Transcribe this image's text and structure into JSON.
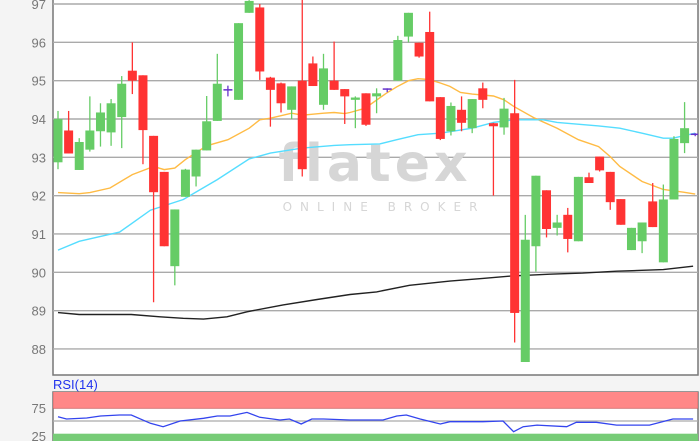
{
  "watermark": {
    "logo": "flatex",
    "tagline": "ONLINE BROKER"
  },
  "colors": {
    "up": "#66cc66",
    "down": "#ff3333",
    "doji": "#6633cc",
    "ma_short": "#ffbb44",
    "ma_mid": "#55ddff",
    "ma_long": "#222222",
    "rsi_line": "#3344ee",
    "overbought_band": "#ff8888",
    "oversold_band": "#77cc77"
  },
  "chart_data": [
    {
      "type": "candlestick",
      "ylim": [
        87.3,
        97.1
      ],
      "yticks": [
        "88",
        "89",
        "90",
        "91",
        "92",
        "93",
        "94",
        "95",
        "96",
        "97"
      ],
      "grid": true,
      "candles_ohlc": [
        [
          92.87,
          94.21,
          92.69,
          94.0
        ],
        [
          93.7,
          94.21,
          93.1,
          93.1
        ],
        [
          92.67,
          93.5,
          92.67,
          93.4
        ],
        [
          93.2,
          94.59,
          93.15,
          93.7
        ],
        [
          93.68,
          94.41,
          93.28,
          94.17
        ],
        [
          93.65,
          94.52,
          93.3,
          94.41
        ],
        [
          94.05,
          95.12,
          93.24,
          94.92
        ],
        [
          95.26,
          96.0,
          94.65,
          95.0
        ],
        [
          95.14,
          95.14,
          92.82,
          93.71
        ],
        [
          93.56,
          93.56,
          89.22,
          92.09
        ],
        [
          92.62,
          92.62,
          90.68,
          90.68
        ],
        [
          90.16,
          91.64,
          89.66,
          91.64
        ],
        [
          91.97,
          92.7,
          91.97,
          92.68
        ],
        [
          92.5,
          93.2,
          92.24,
          93.2
        ],
        [
          93.18,
          94.6,
          93.18,
          93.94
        ],
        [
          93.95,
          95.7,
          93.95,
          94.92
        ],
        [
          94.74,
          94.87,
          94.59,
          94.78
        ],
        [
          94.5,
          96.5,
          94.5,
          96.5
        ],
        [
          96.77,
          97.1,
          96.77,
          97.08
        ],
        [
          96.91,
          97.0,
          95.02,
          95.24
        ],
        [
          95.08,
          95.1,
          93.8,
          94.76
        ],
        [
          94.93,
          94.95,
          94.17,
          94.41
        ],
        [
          94.24,
          94.85,
          94.0,
          94.85
        ],
        [
          95.0,
          97.2,
          92.5,
          92.69
        ],
        [
          95.45,
          95.63,
          94.86,
          94.86
        ],
        [
          94.37,
          95.7,
          94.24,
          95.32
        ],
        [
          95.0,
          96.02,
          94.76,
          94.76
        ],
        [
          94.78,
          94.78,
          93.87,
          94.59
        ],
        [
          94.5,
          94.59,
          93.76,
          94.56
        ],
        [
          94.67,
          94.67,
          93.82,
          93.85
        ],
        [
          94.59,
          94.8,
          94.15,
          94.67
        ],
        [
          94.78,
          94.8,
          94.7,
          94.8
        ],
        [
          95.0,
          96.17,
          95.0,
          96.06
        ],
        [
          96.15,
          96.77,
          96.0,
          96.77
        ],
        [
          95.99,
          95.99,
          95.6,
          95.63
        ],
        [
          96.27,
          96.8,
          94.46,
          94.46
        ],
        [
          94.57,
          94.57,
          93.45,
          93.48
        ],
        [
          93.68,
          94.43,
          93.57,
          94.34
        ],
        [
          94.24,
          94.59,
          93.68,
          93.9
        ],
        [
          93.76,
          94.52,
          93.63,
          94.52
        ],
        [
          94.8,
          94.95,
          94.28,
          94.5
        ],
        [
          93.89,
          93.9,
          92.0,
          93.81
        ],
        [
          93.78,
          94.55,
          93.59,
          94.27
        ],
        [
          94.15,
          95.02,
          88.17,
          88.94
        ],
        [
          87.66,
          91.5,
          87.66,
          90.85
        ],
        [
          90.68,
          92.52,
          90.02,
          92.52
        ],
        [
          92.14,
          92.14,
          90.91,
          91.13
        ],
        [
          91.16,
          91.5,
          90.96,
          91.3
        ],
        [
          91.5,
          91.68,
          90.52,
          90.87
        ],
        [
          90.81,
          92.49,
          90.81,
          92.49
        ],
        [
          92.48,
          92.6,
          92.33,
          92.33
        ],
        [
          93.02,
          93.02,
          92.63,
          92.66
        ],
        [
          92.62,
          92.62,
          91.63,
          91.83
        ],
        [
          91.91,
          91.91,
          91.24,
          91.24
        ],
        [
          90.58,
          91.16,
          90.58,
          91.16
        ],
        [
          90.81,
          91.3,
          90.5,
          91.3
        ],
        [
          91.85,
          92.33,
          91.18,
          91.18
        ],
        [
          90.26,
          92.29,
          90.26,
          91.9
        ],
        [
          91.9,
          93.55,
          91.9,
          93.48
        ],
        [
          93.37,
          94.44,
          93.11,
          93.76
        ],
        [
          93.6,
          93.63,
          93.55,
          93.62
        ]
      ],
      "moving_averages": [
        {
          "color_key": "ma_short",
          "points": [
            [
              0,
              92.08
            ],
            [
              2,
              92.05
            ],
            [
              3,
              92.08
            ],
            [
              4.9,
              92.2
            ],
            [
              7,
              92.55
            ],
            [
              9,
              92.76
            ],
            [
              10,
              92.68
            ],
            [
              11,
              92.72
            ],
            [
              12,
              92.94
            ],
            [
              14,
              93.3
            ],
            [
              16,
              93.46
            ],
            [
              18,
              93.76
            ],
            [
              19,
              93.98
            ],
            [
              20,
              94.02
            ],
            [
              22,
              94.15
            ],
            [
              23,
              94.1
            ],
            [
              25,
              94.15
            ],
            [
              26,
              94.17
            ],
            [
              27,
              94.14
            ],
            [
              27.5,
              94.17
            ],
            [
              28.9,
              94.28
            ],
            [
              30.9,
              94.67
            ],
            [
              31.9,
              94.84
            ],
            [
              33,
              95.0
            ],
            [
              33.9,
              95.05
            ],
            [
              34.9,
              95.03
            ],
            [
              36,
              94.94
            ],
            [
              36.9,
              94.85
            ],
            [
              37.9,
              94.69
            ],
            [
              39,
              94.65
            ],
            [
              41,
              94.6
            ],
            [
              42,
              94.5
            ],
            [
              42.9,
              94.33
            ],
            [
              44.9,
              94.02
            ],
            [
              47,
              93.76
            ],
            [
              49,
              93.46
            ],
            [
              50.9,
              93.28
            ],
            [
              52,
              93.02
            ],
            [
              52.9,
              92.76
            ],
            [
              55,
              92.37
            ],
            [
              57,
              92.16
            ],
            [
              58.9,
              92.09
            ],
            [
              60,
              92.04
            ]
          ]
        },
        {
          "color_key": "ma_mid",
          "points": [
            [
              0,
              90.58
            ],
            [
              2,
              90.81
            ],
            [
              5.8,
              91.05
            ],
            [
              8.7,
              91.62
            ],
            [
              11.8,
              91.9
            ],
            [
              15,
              92.42
            ],
            [
              18,
              92.96
            ],
            [
              20,
              93.11
            ],
            [
              23,
              93.24
            ],
            [
              26,
              93.31
            ],
            [
              27.5,
              93.33
            ],
            [
              30.3,
              93.35
            ],
            [
              31.9,
              93.46
            ],
            [
              33.9,
              93.59
            ],
            [
              36,
              93.63
            ],
            [
              39,
              93.76
            ],
            [
              41,
              93.91
            ],
            [
              42.9,
              93.98
            ],
            [
              45.7,
              93.98
            ],
            [
              47,
              93.91
            ],
            [
              50.9,
              93.82
            ],
            [
              52.9,
              93.76
            ],
            [
              55,
              93.63
            ],
            [
              57,
              93.5
            ],
            [
              57.9,
              93.5
            ],
            [
              60,
              93.63
            ]
          ]
        },
        {
          "color_key": "ma_long",
          "points": [
            [
              0,
              88.95
            ],
            [
              2,
              88.9
            ],
            [
              6.9,
              88.9
            ],
            [
              9.6,
              88.84
            ],
            [
              11.8,
              88.8
            ],
            [
              13.7,
              88.78
            ],
            [
              15.9,
              88.84
            ],
            [
              17.8,
              88.97
            ],
            [
              21.2,
              89.15
            ],
            [
              24.4,
              89.29
            ],
            [
              27.5,
              89.42
            ],
            [
              30,
              89.49
            ],
            [
              33.1,
              89.66
            ],
            [
              36.9,
              89.77
            ],
            [
              40,
              89.84
            ],
            [
              42.6,
              89.9
            ],
            [
              46.3,
              89.95
            ],
            [
              49.4,
              89.98
            ],
            [
              52.6,
              90.03
            ],
            [
              57,
              90.07
            ],
            [
              59.8,
              90.16
            ]
          ]
        }
      ]
    },
    {
      "type": "line",
      "title": "RSI(14)",
      "yticks": [
        "75",
        "25"
      ],
      "overbought": 75,
      "oversold": 25,
      "points": [
        [
          0,
          58.5
        ],
        [
          0.8,
          54
        ],
        [
          2.7,
          56
        ],
        [
          4,
          59.8
        ],
        [
          5.8,
          61.8
        ],
        [
          6.9,
          61.8
        ],
        [
          8.7,
          45.4
        ],
        [
          9.9,
          38.8
        ],
        [
          11.5,
          50
        ],
        [
          13.7,
          55.3
        ],
        [
          15,
          59.8
        ],
        [
          16.2,
          59.8
        ],
        [
          17.8,
          67
        ],
        [
          19,
          57.2
        ],
        [
          20.9,
          52
        ],
        [
          21.8,
          54
        ],
        [
          22.9,
          44
        ],
        [
          23.9,
          54
        ],
        [
          25,
          54
        ],
        [
          27.5,
          52
        ],
        [
          30.6,
          52
        ],
        [
          31.9,
          59.8
        ],
        [
          32.8,
          61.8
        ],
        [
          34.1,
          54
        ],
        [
          36,
          44
        ],
        [
          36.9,
          48.7
        ],
        [
          40,
          48.7
        ],
        [
          41.9,
          50
        ],
        [
          42.9,
          29
        ],
        [
          43.8,
          38.8
        ],
        [
          45.1,
          42
        ],
        [
          47.9,
          38.8
        ],
        [
          48.8,
          47.4
        ],
        [
          50.7,
          47.4
        ],
        [
          52.6,
          42
        ],
        [
          55.7,
          42
        ],
        [
          57.9,
          54
        ],
        [
          59.8,
          54
        ]
      ]
    }
  ]
}
